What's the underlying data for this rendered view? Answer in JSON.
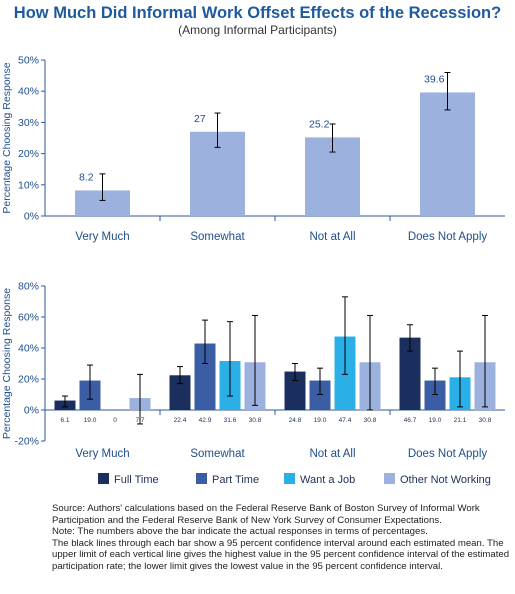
{
  "title": "How Much Did Informal Work Offset Effects of the Recession?",
  "subtitle": "(Among Informal Participants)",
  "chart_data": [
    {
      "type": "bar",
      "title": "How Much Did Informal Work Offset Effects of the Recession?",
      "subtitle": "(Among Informal Participants)",
      "categories": [
        "Very Much",
        "Somewhat",
        "Not at All",
        "Does Not Apply"
      ],
      "values": [
        8.2,
        27,
        25.2,
        39.6
      ],
      "error_low": [
        5,
        22,
        20.5,
        34
      ],
      "error_high": [
        13.5,
        33,
        29.5,
        46
      ],
      "data_labels": [
        "8.2",
        "27",
        "25.2",
        "39.6"
      ],
      "color": "#9db1de",
      "ylabel": "Percentage Choosing Response",
      "ylim": [
        0,
        50
      ],
      "yticks": [
        "0%",
        "10%",
        "20%",
        "30%",
        "40%",
        "50%"
      ],
      "ytick_values": [
        0,
        10,
        20,
        30,
        40,
        50
      ],
      "grid": false
    },
    {
      "type": "bar",
      "categories": [
        "Very Much",
        "Somewhat",
        "Not at All",
        "Does Not Apply"
      ],
      "series": [
        {
          "name": "Full Time",
          "color": "#1b2f5e",
          "values": [
            6.1,
            22.4,
            24.8,
            46.7
          ],
          "labels": [
            "6.1",
            "22.4",
            "24.8",
            "46.7"
          ],
          "error_low": [
            2,
            17,
            19,
            38
          ],
          "error_high": [
            9,
            28,
            30,
            55
          ]
        },
        {
          "name": "Part Time",
          "color": "#3b5da3",
          "values": [
            19,
            42.9,
            19,
            19
          ],
          "labels": [
            "19.0",
            "42.9",
            "19.0",
            "19.0"
          ],
          "error_low": [
            7,
            30,
            10,
            10
          ],
          "error_high": [
            29,
            58,
            27,
            27
          ]
        },
        {
          "name": "Want a Job",
          "color": "#2ab0e6",
          "values": [
            0,
            31.6,
            47.4,
            21.1
          ],
          "labels": [
            "0",
            "31.6",
            "47.4",
            "21.1"
          ],
          "error_low": [
            null,
            9,
            23,
            2
          ],
          "error_high": [
            null,
            57,
            73,
            38
          ]
        },
        {
          "name": "Other Not Working",
          "color": "#9db1de",
          "values": [
            7.7,
            30.8,
            30.8,
            30.8
          ],
          "labels": [
            "7.7",
            "30.8",
            "30.8",
            "30.8"
          ],
          "error_low": [
            -9,
            3,
            0,
            2
          ],
          "error_high": [
            23,
            61,
            61,
            61
          ]
        }
      ],
      "ylabel": "Percentage Choosing Response",
      "ylim": [
        -20,
        80
      ],
      "yticks": [
        "-20%",
        "0%",
        "20%",
        "40%",
        "60%",
        "80%"
      ],
      "ytick_values": [
        -20,
        0,
        20,
        40,
        60,
        80
      ],
      "legend": "bottom",
      "grid": false
    }
  ],
  "source_lines": [
    "Source: Authors' calculations based on the Federal Reserve Bank of Boston Survey of Informal Work Participation and the Federal Reserve Bank of New York Survey of Consumer Expectations.",
    "Note: The numbers above the bar indicate the actual responses in terms of percentages.",
    "The black lines through each bar show a 95 percent confidence interval around each estimated mean. The upper limit of each vertical line gives the highest value in the 95 percent confidence interval of the estimated participation rate; the lower limit gives the lowest value in the 95 percent confidence interval."
  ]
}
